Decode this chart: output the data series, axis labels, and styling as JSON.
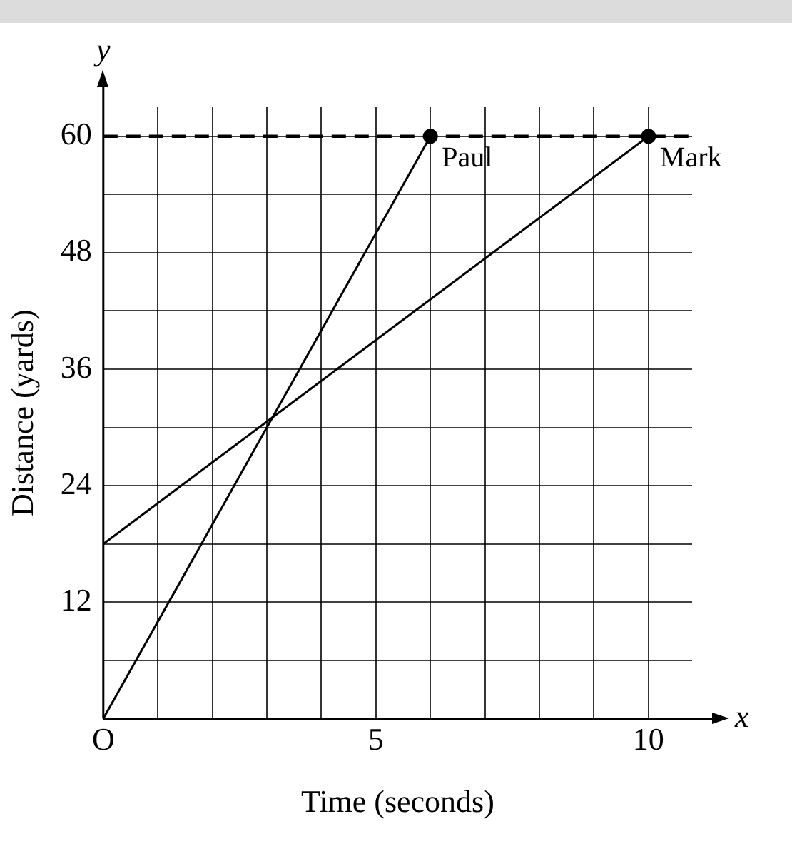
{
  "chart_data": {
    "type": "line",
    "xlabel": "Time (seconds)",
    "ylabel": "Distance (yards)",
    "xlim": [
      0,
      10.8
    ],
    "ylim": [
      0,
      63
    ],
    "xticks": [
      {
        "value": 0,
        "label": "O"
      },
      {
        "value": 1,
        "label": null
      },
      {
        "value": 2,
        "label": null
      },
      {
        "value": 3,
        "label": null
      },
      {
        "value": 4,
        "label": null
      },
      5,
      {
        "value": 6,
        "label": null
      },
      {
        "value": 7,
        "label": null
      },
      {
        "value": 8,
        "label": null
      },
      {
        "value": 9,
        "label": null
      },
      10
    ],
    "yticks": [
      {
        "value": 6,
        "label": null
      },
      12,
      {
        "value": 18,
        "label": null
      },
      24,
      {
        "value": 30,
        "label": null
      },
      36,
      {
        "value": 42,
        "label": null
      },
      48,
      {
        "value": 54,
        "label": null
      },
      60
    ],
    "series": [
      {
        "name": "Paul",
        "color": "#000000",
        "x": [
          0,
          6
        ],
        "values": [
          0,
          60
        ]
      },
      {
        "name": "Mark",
        "color": "#000000",
        "x": [
          0,
          10
        ],
        "values": [
          18,
          60
        ]
      }
    ],
    "ref_lines": [
      {
        "axis": "y",
        "value": 60,
        "line_style": "dashed",
        "color": "#000000"
      }
    ],
    "annotations": [
      "x",
      "y"
    ],
    "grid": true,
    "legend": false,
    "marker": "circle",
    "line_style": "solid"
  }
}
